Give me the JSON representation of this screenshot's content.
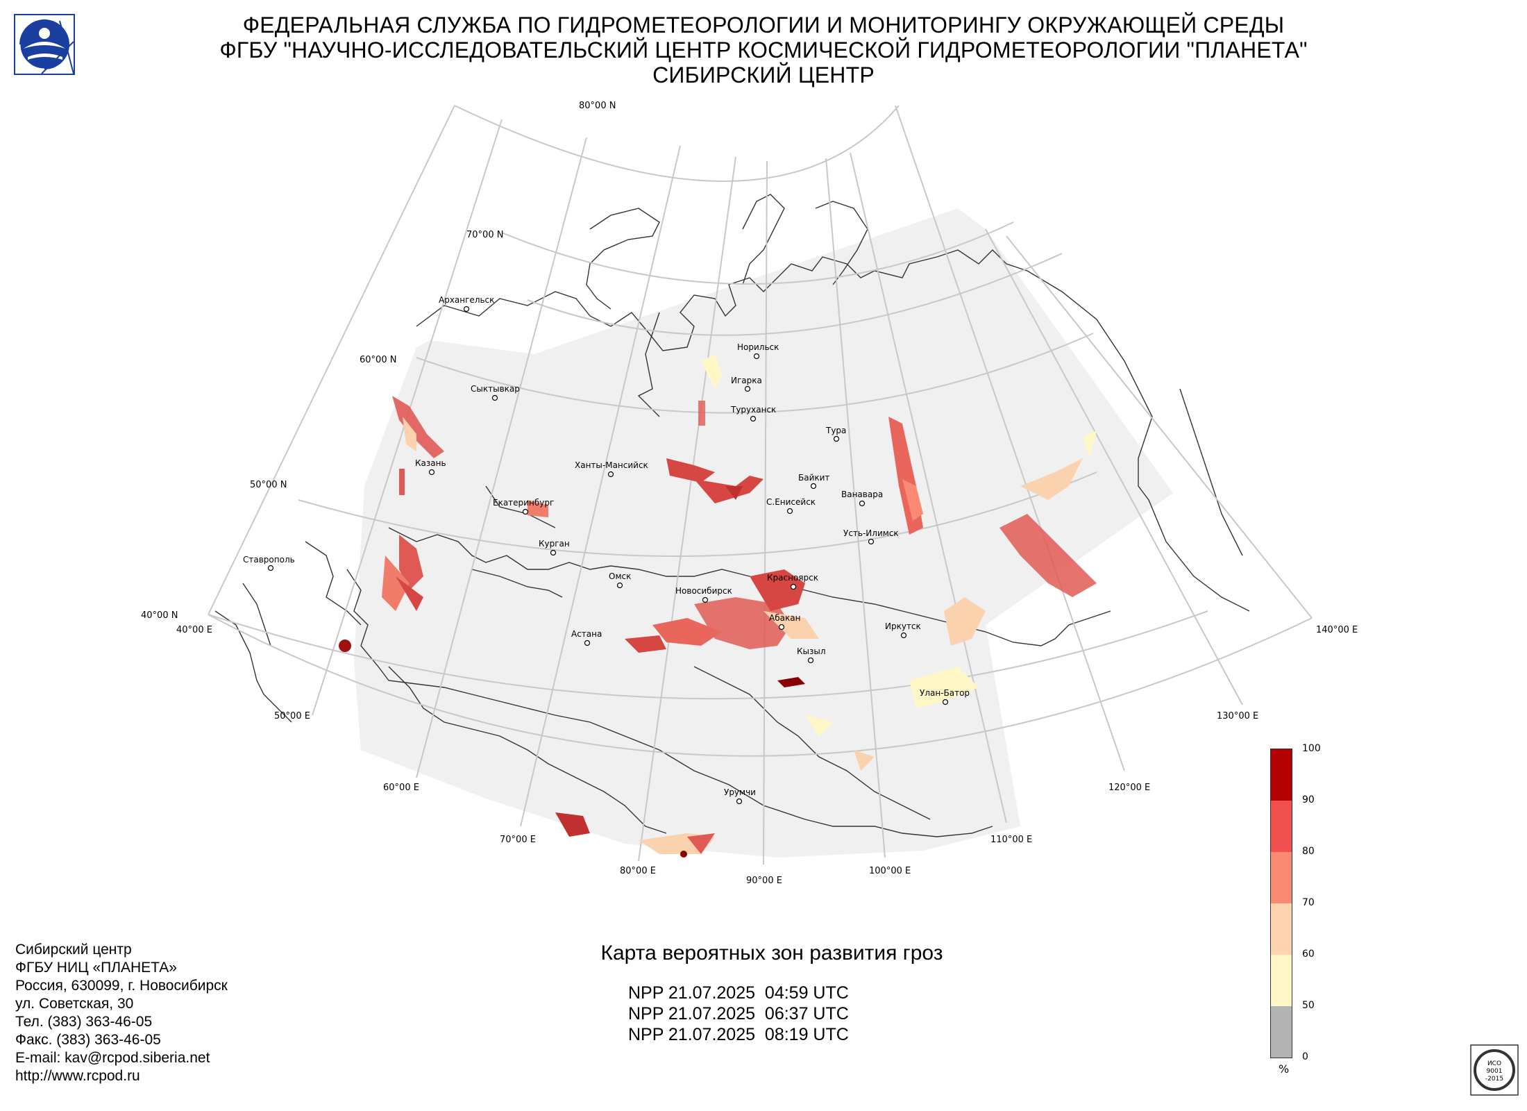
{
  "header": {
    "line1": "ФЕДЕРАЛЬНАЯ СЛУЖБА ПО ГИДРОМЕТЕОРОЛОГИИ И МОНИТОРИНГУ ОКРУЖАЮЩЕЙ СРЕДЫ",
    "line2": "ФГБУ \"НАУЧНО-ИССЛЕДОВАТЕЛЬСКИЙ ЦЕНТР КОСМИЧЕСКОЙ ГИДРОМЕТЕОРОЛОГИИ \"ПЛАНЕТА\"",
    "line3": "СИБИРСКИЙ ЦЕНТР"
  },
  "map": {
    "lat_labels": [
      "80°00 N",
      "70°00 N",
      "60°00 N",
      "50°00 N",
      "40°00 N"
    ],
    "lon_labels": [
      "40°00 E",
      "50°00 E",
      "60°00 E",
      "70°00 E",
      "80°00 E",
      "90°00 E",
      "100°00 E",
      "110°00 E",
      "120°00 E",
      "130°00 E",
      "140°00 E"
    ],
    "cities": [
      "Архангельск",
      "Сыктывкар",
      "Норильск",
      "Игарка",
      "Туруханск",
      "Тура",
      "Казань",
      "Ханты-Мансийск",
      "Байкит",
      "Ванавара",
      "Екатеринбург",
      "С.Енисейск",
      "Усть-Илимск",
      "Курган",
      "Ставрополь",
      "Омск",
      "Новосибирск",
      "Красноярск",
      "Абакан",
      "Иркутск",
      "Астана",
      "Кызыл",
      "Улан-Батор",
      "Урумчи"
    ],
    "colors": {
      "domain_fill": "#f0f0f0",
      "grid": "#c8c8c8",
      "coast": "#333333"
    }
  },
  "legend": {
    "ticks": [
      "100",
      "90",
      "80",
      "70",
      "60",
      "50",
      "0"
    ],
    "unit": "%",
    "colors": [
      "#b40000",
      "#f05050",
      "#fb8a73",
      "#fdd3b0",
      "#fff7c6",
      "#b3b3b3"
    ]
  },
  "contacts": [
    "Сибирский центр",
    "ФГБУ НИЦ «ПЛАНЕТА»",
    "Россия, 630099, г. Новосибирск",
    "ул. Советская, 30",
    "Тел. (383) 363-46-05",
    "Факс. (383) 363-46-05",
    "E-mail: kav@rcpod.siberia.net",
    "http://www.rcpod.ru"
  ],
  "caption": {
    "title": "Карта вероятных зон развития гроз",
    "passes": [
      "NPP 21.07.2025  04:59 UTC",
      "NPP 21.07.2025  06:37 UTC",
      "NPP 21.07.2025  08:19 UTC"
    ]
  },
  "iso": {
    "lines": [
      "ИСО",
      "9001",
      "-2015"
    ]
  }
}
